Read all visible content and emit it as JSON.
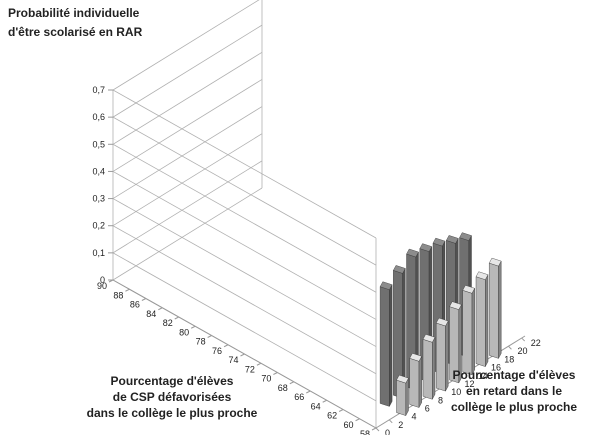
{
  "chart_data": {
    "type": "bar",
    "zlabel": [
      "Probabilité individuelle",
      "d'être scolarisé en RAR"
    ],
    "depth_label": [
      "Pourcentage d'élèves",
      "de CSP défavorisées",
      "dans le collège le plus proche"
    ],
    "width_label": [
      "Pourcentage d'élèves",
      "en retard dans le",
      "collège le plus proche"
    ],
    "z_ticks": [
      "0",
      "0,1",
      "0,2",
      "0,3",
      "0,4",
      "0,5",
      "0,6",
      "0,7"
    ],
    "zlim": [
      0,
      0.7
    ],
    "depth_ticks": [
      "90",
      "88",
      "86",
      "84",
      "82",
      "80",
      "78",
      "76",
      "74",
      "72",
      "70",
      "68",
      "66",
      "64",
      "62",
      "60",
      "58"
    ],
    "width_ticks": [
      "0",
      "2",
      "4",
      "6",
      "8",
      "10",
      "12",
      "14",
      "16",
      "18",
      "20",
      "22"
    ],
    "series": [
      {
        "csp": "60",
        "color": "#707070",
        "bars": [
          {
            "retard": 4,
            "value": 0.43
          },
          {
            "retard": 6,
            "value": 0.46
          },
          {
            "retard": 8,
            "value": 0.49
          },
          {
            "retard": 10,
            "value": 0.48
          },
          {
            "retard": 12,
            "value": 0.47
          },
          {
            "retard": 14,
            "value": 0.45
          },
          {
            "retard": 16,
            "value": 0.43
          }
        ]
      },
      {
        "csp": "58",
        "color": "#b8b8b8",
        "bars": [
          {
            "retard": 4,
            "value": 0.12
          },
          {
            "retard": 6,
            "value": 0.17
          },
          {
            "retard": 8,
            "value": 0.21
          },
          {
            "retard": 10,
            "value": 0.24
          },
          {
            "retard": 12,
            "value": 0.27
          },
          {
            "retard": 14,
            "value": 0.3
          },
          {
            "retard": 16,
            "value": 0.32
          },
          {
            "retard": 18,
            "value": 0.34
          }
        ]
      }
    ],
    "grid": true
  }
}
